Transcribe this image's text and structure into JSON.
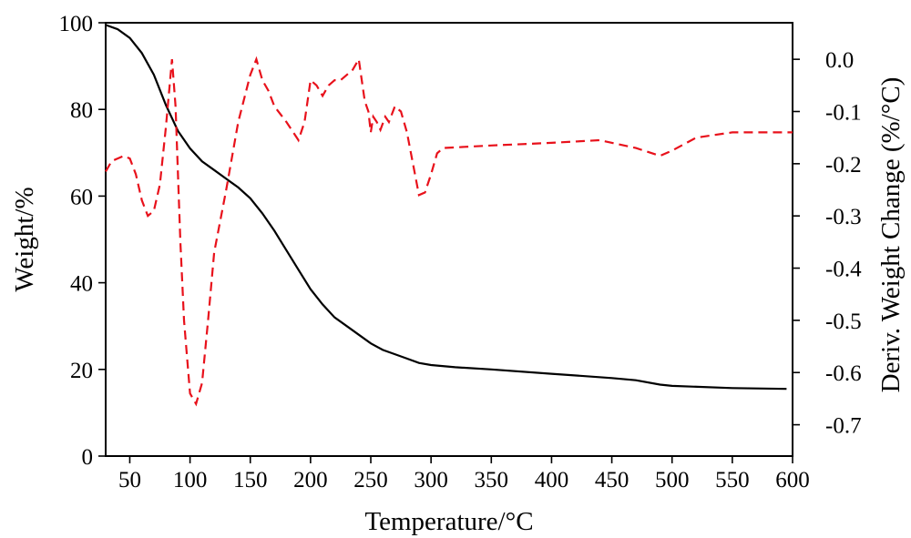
{
  "chart_data": {
    "type": "line",
    "xlabel": "Temperature/°C",
    "ylabel": "Weight/%",
    "y2label": "Deriv. Weight Change (%/°C)",
    "xlim": [
      30,
      600
    ],
    "ylim": [
      0,
      100
    ],
    "y2lim": [
      -0.76,
      0.07
    ],
    "x_ticks": [
      50,
      100,
      150,
      200,
      250,
      300,
      350,
      400,
      450,
      500,
      550,
      600
    ],
    "y_ticks": [
      0,
      20,
      40,
      60,
      80,
      100
    ],
    "y2_ticks": [
      0.0,
      -0.1,
      -0.2,
      -0.3,
      -0.4,
      -0.5,
      -0.6,
      -0.7
    ],
    "y2_tick_labels": [
      "0.0",
      "-0.1",
      "-0.2",
      "-0.3",
      "-0.4",
      "-0.5",
      "-0.6",
      "-0.7"
    ],
    "grid": false,
    "series": [
      {
        "axis": "left",
        "color": "#000000",
        "style": "solid",
        "x": [
          30,
          40,
          50,
          60,
          70,
          80,
          90,
          100,
          110,
          120,
          130,
          140,
          150,
          160,
          170,
          180,
          190,
          200,
          210,
          220,
          230,
          240,
          250,
          260,
          270,
          280,
          290,
          300,
          320,
          350,
          400,
          450,
          470,
          490,
          500,
          550,
          595
        ],
        "y": [
          99.5,
          98.5,
          96.5,
          93,
          88,
          81,
          75,
          71,
          68,
          66,
          64,
          62,
          59.5,
          56,
          52,
          47.5,
          43,
          38.5,
          35,
          32,
          30,
          28,
          26,
          24.5,
          23.5,
          22.5,
          21.5,
          21,
          20.5,
          20,
          19,
          18,
          17.5,
          16.5,
          16.2,
          15.7,
          15.5
        ]
      },
      {
        "axis": "right",
        "color": "#e8111b",
        "style": "dashed",
        "x": [
          30,
          35,
          40,
          45,
          50,
          55,
          60,
          65,
          70,
          75,
          80,
          85,
          88,
          92,
          95,
          100,
          105,
          110,
          115,
          120,
          130,
          140,
          150,
          155,
          160,
          165,
          170,
          180,
          190,
          195,
          200,
          205,
          210,
          215,
          220,
          225,
          230,
          235,
          240,
          245,
          248,
          250,
          252,
          255,
          258,
          262,
          265,
          270,
          275,
          280,
          285,
          290,
          295,
          300,
          305,
          310,
          350,
          400,
          440,
          470,
          490,
          500,
          520,
          550,
          600
        ],
        "y": [
          -0.215,
          -0.195,
          -0.19,
          -0.185,
          -0.19,
          -0.22,
          -0.27,
          -0.3,
          -0.29,
          -0.24,
          -0.13,
          0.0,
          -0.09,
          -0.35,
          -0.5,
          -0.64,
          -0.66,
          -0.62,
          -0.5,
          -0.37,
          -0.25,
          -0.12,
          -0.03,
          0.0,
          -0.04,
          -0.06,
          -0.09,
          -0.12,
          -0.155,
          -0.12,
          -0.04,
          -0.05,
          -0.07,
          -0.05,
          -0.04,
          -0.04,
          -0.03,
          -0.02,
          0.0,
          -0.08,
          -0.1,
          -0.14,
          -0.11,
          -0.12,
          -0.135,
          -0.11,
          -0.12,
          -0.09,
          -0.1,
          -0.14,
          -0.2,
          -0.26,
          -0.255,
          -0.22,
          -0.18,
          -0.17,
          -0.165,
          -0.16,
          -0.155,
          -0.17,
          -0.185,
          -0.175,
          -0.15,
          -0.14,
          -0.14
        ]
      }
    ]
  }
}
